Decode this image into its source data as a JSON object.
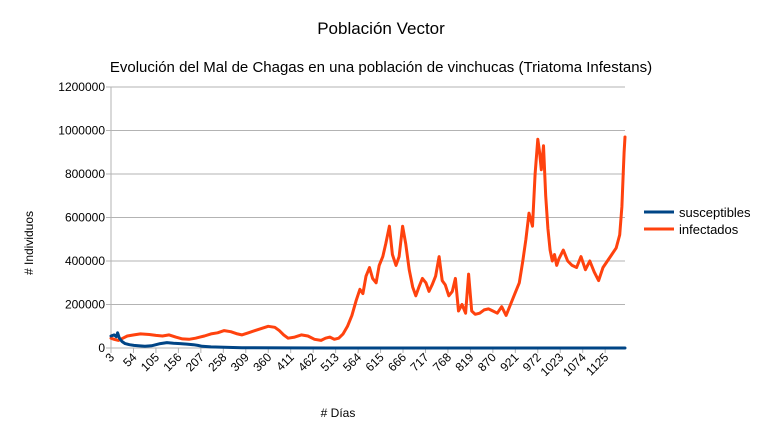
{
  "chart_data": {
    "type": "line",
    "title": "Población Vector",
    "subtitle": "Evolución del Mal de Chagas en una población de vinchucas (Triatoma Infestans)",
    "xlabel": "# Días",
    "ylabel": "# Individuos",
    "ylim": [
      0,
      1200000
    ],
    "xlim": [
      3,
      1170
    ],
    "y_ticks": [
      0,
      200000,
      400000,
      600000,
      800000,
      1000000,
      1200000
    ],
    "y_tick_labels": [
      "0",
      "200000",
      "400000",
      "600000",
      "800000",
      "1000000",
      "1200000"
    ],
    "x_ticks": [
      3,
      54,
      105,
      156,
      207,
      258,
      309,
      360,
      411,
      462,
      513,
      564,
      615,
      666,
      717,
      768,
      819,
      870,
      921,
      972,
      1023,
      1074,
      1125
    ],
    "x_tick_labels": [
      "3",
      "54",
      "105",
      "156",
      "207",
      "258",
      "309",
      "360",
      "411",
      "462",
      "513",
      "564",
      "615",
      "666",
      "717",
      "768",
      "819",
      "870",
      "921",
      "972",
      "1023",
      "1074",
      "1125"
    ],
    "grid": "horizontal",
    "legend": "right",
    "series": [
      {
        "name": "susceptibles",
        "color": "#004586",
        "x": [
          3,
          10,
          15,
          18,
          22,
          28,
          35,
          45,
          55,
          65,
          80,
          95,
          105,
          115,
          130,
          145,
          160,
          175,
          190,
          200,
          210,
          230,
          260,
          300,
          400,
          500,
          700,
          900,
          1100,
          1170
        ],
        "y": [
          55000,
          60000,
          52000,
          70000,
          45000,
          30000,
          20000,
          15000,
          12000,
          10000,
          8000,
          10000,
          15000,
          20000,
          25000,
          22000,
          20000,
          18000,
          15000,
          12000,
          8000,
          5000,
          3000,
          1500,
          500,
          200,
          0,
          0,
          0,
          0
        ]
      },
      {
        "name": "infectados",
        "color": "#ff420e",
        "x": [
          3,
          10,
          20,
          30,
          40,
          55,
          70,
          90,
          105,
          120,
          135,
          150,
          165,
          180,
          195,
          205,
          215,
          230,
          245,
          260,
          275,
          290,
          300,
          315,
          330,
          345,
          360,
          375,
          385,
          395,
          405,
          420,
          435,
          450,
          465,
          480,
          490,
          500,
          510,
          520,
          530,
          540,
          550,
          560,
          568,
          575,
          582,
          590,
          597,
          605,
          612,
          620,
          627,
          635,
          642,
          650,
          657,
          665,
          672,
          680,
          688,
          695,
          702,
          710,
          718,
          725,
          732,
          740,
          748,
          755,
          762,
          770,
          778,
          785,
          792,
          800,
          808,
          815,
          822,
          830,
          840,
          850,
          860,
          870,
          880,
          890,
          900,
          910,
          920,
          930,
          938,
          945,
          952,
          960,
          966,
          972,
          976,
          980,
          985,
          990,
          995,
          1000,
          1005,
          1010,
          1015,
          1020,
          1030,
          1040,
          1050,
          1060,
          1070,
          1080,
          1090,
          1100,
          1110,
          1120,
          1130,
          1140,
          1150,
          1158,
          1163,
          1166,
          1168,
          1170
        ],
        "y": [
          45000,
          40000,
          35000,
          45000,
          55000,
          60000,
          65000,
          62000,
          58000,
          55000,
          60000,
          50000,
          42000,
          40000,
          45000,
          50000,
          55000,
          65000,
          70000,
          80000,
          75000,
          65000,
          60000,
          70000,
          80000,
          90000,
          100000,
          95000,
          80000,
          60000,
          45000,
          50000,
          60000,
          55000,
          40000,
          35000,
          45000,
          50000,
          40000,
          45000,
          65000,
          100000,
          150000,
          220000,
          270000,
          250000,
          330000,
          370000,
          320000,
          300000,
          380000,
          420000,
          480000,
          560000,
          430000,
          380000,
          420000,
          560000,
          480000,
          360000,
          280000,
          240000,
          280000,
          320000,
          300000,
          260000,
          290000,
          330000,
          420000,
          310000,
          290000,
          240000,
          260000,
          320000,
          170000,
          200000,
          160000,
          340000,
          170000,
          155000,
          160000,
          175000,
          180000,
          170000,
          160000,
          190000,
          150000,
          200000,
          250000,
          300000,
          400000,
          500000,
          620000,
          560000,
          800000,
          960000,
          900000,
          820000,
          930000,
          700000,
          550000,
          450000,
          400000,
          430000,
          380000,
          410000,
          450000,
          400000,
          380000,
          370000,
          420000,
          360000,
          400000,
          350000,
          310000,
          370000,
          400000,
          430000,
          460000,
          520000,
          650000,
          800000,
          900000,
          970000
        ]
      }
    ]
  }
}
